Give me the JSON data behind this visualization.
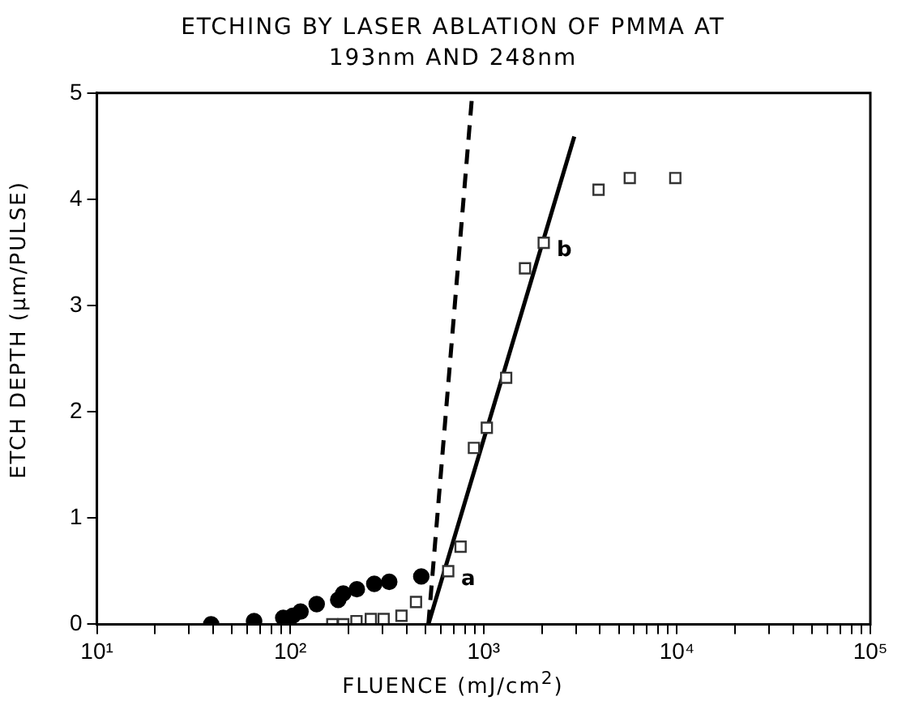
{
  "chart_data": {
    "type": "scatter",
    "title": "ETCHING BY LASER ABLATION OF PMMA AT\n193nm AND 248nm",
    "xlabel": "FLUENCE (mJ/cm$^{2}$)",
    "ylabel": "ETCH DEPTH (μm/PULSE)",
    "log": "x",
    "grid": false,
    "legend": false,
    "xlim": [
      10,
      100000
    ],
    "ylim": [
      0,
      5
    ],
    "yticks": [
      0,
      1,
      2,
      3,
      4,
      5
    ],
    "xticks": [
      {
        "value": 10,
        "label": "10¹"
      },
      {
        "value": 20,
        "label": null
      },
      {
        "value": 30,
        "label": null
      },
      {
        "value": 40,
        "label": null
      },
      {
        "value": 50,
        "label": null
      },
      {
        "value": 60,
        "label": null
      },
      {
        "value": 70,
        "label": null
      },
      {
        "value": 80,
        "label": null
      },
      {
        "value": 90,
        "label": null
      },
      {
        "value": 100,
        "label": "10²"
      },
      {
        "value": 200,
        "label": null
      },
      {
        "value": 300,
        "label": null
      },
      {
        "value": 400,
        "label": null
      },
      {
        "value": 500,
        "label": null
      },
      {
        "value": 600,
        "label": null
      },
      {
        "value": 700,
        "label": null
      },
      {
        "value": 800,
        "label": null
      },
      {
        "value": 900,
        "label": null
      },
      {
        "value": 1000,
        "label": "10³"
      },
      {
        "value": 2000,
        "label": null
      },
      {
        "value": 3000,
        "label": null
      },
      {
        "value": 4000,
        "label": null
      },
      {
        "value": 5000,
        "label": null
      },
      {
        "value": 6000,
        "label": null
      },
      {
        "value": 7000,
        "label": null
      },
      {
        "value": 8000,
        "label": null
      },
      {
        "value": 9000,
        "label": null
      },
      {
        "value": 10000,
        "label": "10⁴"
      },
      {
        "value": 20000,
        "label": null
      },
      {
        "value": 30000,
        "label": null
      },
      {
        "value": 40000,
        "label": null
      },
      {
        "value": 50000,
        "label": null
      },
      {
        "value": 60000,
        "label": null
      },
      {
        "value": 70000,
        "label": null
      },
      {
        "value": 80000,
        "label": null
      },
      {
        "value": 90000,
        "label": null
      },
      {
        "value": 100000,
        "label": "10⁵"
      }
    ],
    "series": [
      {
        "marker": "circle",
        "color": "#000000",
        "x": [
          39,
          65,
          92,
          103,
          113,
          137,
          177,
          188,
          221,
          272,
          325,
          476
        ],
        "values": [
          0,
          0.03,
          0.06,
          0.08,
          0.12,
          0.19,
          0.23,
          0.29,
          0.33,
          0.38,
          0.4,
          0.45
        ]
      },
      {
        "marker": "square",
        "color": "#333333",
        "x": [
          165,
          188,
          220,
          261,
          304,
          376,
          447,
          656,
          760,
          891,
          1039,
          1308,
          1637,
          2046,
          3930,
          5700,
          9800
        ],
        "values": [
          0,
          0,
          0.03,
          0.05,
          0.05,
          0.08,
          0.21,
          0.5,
          0.73,
          1.66,
          1.85,
          2.32,
          3.35,
          3.59,
          4.09,
          4.2,
          4.2
        ]
      },
      {
        "type": "line",
        "line_style": "dashed",
        "color": "#000000",
        "x": [
          518,
          874
        ],
        "values": [
          0,
          5
        ]
      },
      {
        "type": "line",
        "line_style": "solid",
        "color": "#000000",
        "x": [
          518,
          2944
        ],
        "values": [
          0,
          4.59
        ]
      }
    ],
    "annotations": [
      {
        "text": "a",
        "x": 656,
        "y": 0.5
      },
      {
        "text": "b",
        "x": 2046,
        "y": 3.59
      }
    ]
  }
}
